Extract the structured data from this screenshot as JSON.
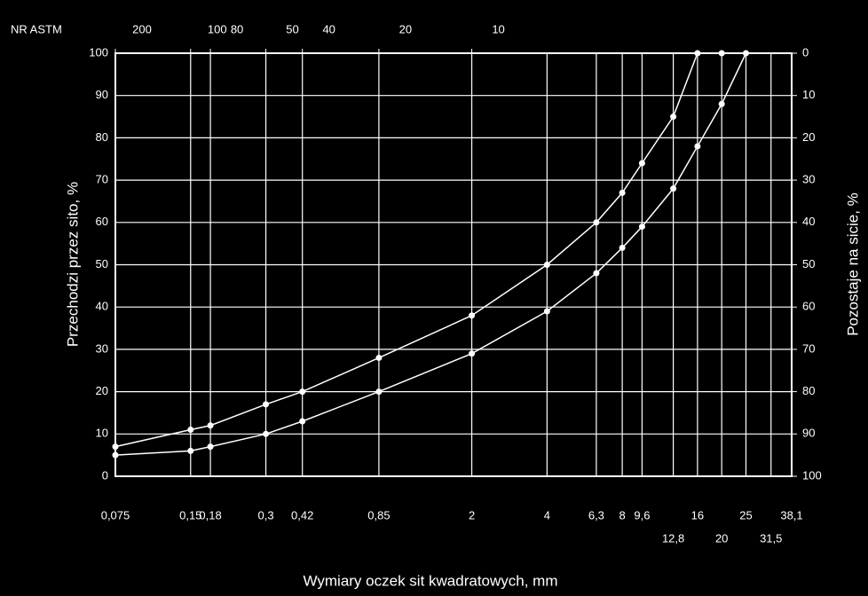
{
  "chart_data": {
    "type": "line",
    "top_axis_label": "NR ASTM",
    "ylabel": "Przechodzi przez sito, %",
    "y2label": "Pozostaje na sicie, %",
    "xlabel": "Wymiary oczek sit kwadratowych, mm",
    "xscale": "log",
    "grid": true,
    "x": [
      0.075,
      0.15,
      0.18,
      0.3,
      0.42,
      0.85,
      2,
      4,
      6.3,
      8,
      9.6,
      12.8,
      16,
      20,
      25
    ],
    "series": [
      {
        "color": "#ffffff",
        "values": [
          7,
          11,
          12,
          17,
          20,
          28,
          38,
          50,
          60,
          67,
          74,
          85,
          100,
          100,
          null
        ]
      },
      {
        "color": "#ffffff",
        "values": [
          5,
          6,
          7,
          10,
          13,
          20,
          29,
          39,
          48,
          54,
          59,
          68,
          78,
          88,
          100
        ]
      }
    ],
    "xlim": [
      0.075,
      38.1
    ],
    "xticks": [
      {
        "value": 0.075,
        "label": "0,075"
      },
      {
        "value": 0.15,
        "label": "0,15"
      },
      {
        "value": 0.18,
        "label": "0,18"
      },
      {
        "value": 0.3,
        "label": "0,3"
      },
      {
        "value": 0.42,
        "label": "0,42"
      },
      {
        "value": 0.85,
        "label": "0,85"
      },
      2,
      4,
      {
        "value": 6.3,
        "label": "6,3"
      },
      8,
      {
        "value": 9.6,
        "label": "9,6"
      },
      {
        "value": 12.8,
        "label": "12,8"
      },
      16,
      20,
      25,
      {
        "value": 31.5,
        "label": "31,5"
      },
      {
        "value": 38.1,
        "label": "38,1"
      }
    ],
    "top_ticks": [
      {
        "value": 0.075,
        "label": "200"
      },
      {
        "value": 0.15,
        "label": "100"
      },
      {
        "value": 0.18,
        "label": "80"
      },
      {
        "value": 0.3,
        "label": "50"
      },
      {
        "value": 0.42,
        "label": "40"
      },
      {
        "value": 0.85,
        "label": "20"
      },
      {
        "value": 2,
        "label": "10"
      }
    ],
    "ylim": [
      0,
      100
    ],
    "yticks": [
      0,
      10,
      20,
      30,
      40,
      50,
      60,
      70,
      80,
      90,
      100
    ],
    "y2lim": [
      100,
      0
    ],
    "y2ticks": [
      0,
      10,
      20,
      30,
      40,
      50,
      60,
      70,
      80,
      90,
      100
    ]
  }
}
